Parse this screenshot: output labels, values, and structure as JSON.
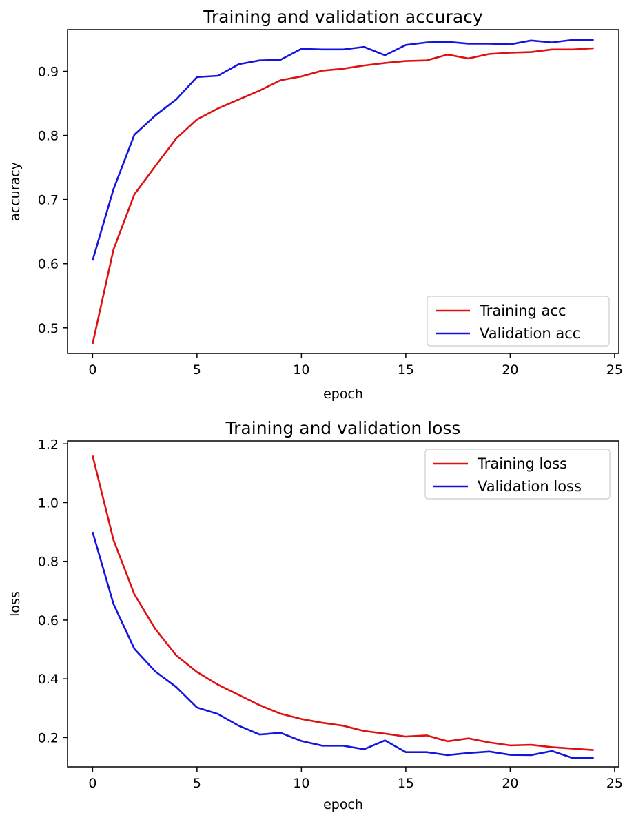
{
  "chart_data": [
    {
      "type": "line",
      "title": "Training and validation accuracy",
      "xlabel": "epoch",
      "ylabel": "accuracy",
      "xlim": [
        -1.2,
        25.2
      ],
      "ylim": [
        0.46,
        0.965
      ],
      "xticks": [
        0,
        5,
        10,
        15,
        20,
        25
      ],
      "xtick_labels": [
        "0",
        "5",
        "10",
        "15",
        "20",
        "25"
      ],
      "yticks": [
        0.5,
        0.6,
        0.7,
        0.8,
        0.9
      ],
      "ytick_labels": [
        "0.5",
        "0.6",
        "0.7",
        "0.8",
        "0.9"
      ],
      "legend_position": "bottom-right",
      "x": [
        0,
        1,
        2,
        3,
        4,
        5,
        6,
        7,
        8,
        9,
        10,
        11,
        12,
        13,
        14,
        15,
        16,
        17,
        18,
        19,
        20,
        21,
        22,
        23,
        24
      ],
      "series": [
        {
          "name": "Training acc",
          "color": "#e01010",
          "values": [
            0.475,
            0.622,
            0.708,
            0.752,
            0.795,
            0.825,
            0.842,
            0.856,
            0.87,
            0.886,
            0.892,
            0.901,
            0.904,
            0.909,
            0.913,
            0.916,
            0.917,
            0.926,
            0.92,
            0.927,
            0.929,
            0.93,
            0.934,
            0.934,
            0.936
          ]
        },
        {
          "name": "Validation acc",
          "color": "#1414e0",
          "values": [
            0.605,
            0.716,
            0.801,
            0.831,
            0.856,
            0.891,
            0.893,
            0.911,
            0.917,
            0.918,
            0.935,
            0.934,
            0.934,
            0.938,
            0.925,
            0.941,
            0.945,
            0.946,
            0.943,
            0.943,
            0.942,
            0.948,
            0.945,
            0.949,
            0.949
          ]
        }
      ]
    },
    {
      "type": "line",
      "title": "Training and validation loss",
      "xlabel": "epoch",
      "ylabel": "loss",
      "xlim": [
        -1.2,
        25.2
      ],
      "ylim": [
        0.1,
        1.21
      ],
      "xticks": [
        0,
        5,
        10,
        15,
        20,
        25
      ],
      "xtick_labels": [
        "0",
        "5",
        "10",
        "15",
        "20",
        "25"
      ],
      "yticks": [
        0.2,
        0.4,
        0.6,
        0.8,
        1.0,
        1.2
      ],
      "ytick_labels": [
        "0.2",
        "0.4",
        "0.6",
        "0.8",
        "1.0",
        "1.2"
      ],
      "legend_position": "top-right",
      "x": [
        0,
        1,
        2,
        3,
        4,
        5,
        6,
        7,
        8,
        9,
        10,
        11,
        12,
        13,
        14,
        15,
        16,
        17,
        18,
        19,
        20,
        21,
        22,
        23,
        24
      ],
      "series": [
        {
          "name": "Training loss",
          "color": "#e01010",
          "values": [
            1.16,
            0.873,
            0.688,
            0.57,
            0.48,
            0.423,
            0.38,
            0.345,
            0.31,
            0.281,
            0.263,
            0.25,
            0.24,
            0.222,
            0.213,
            0.203,
            0.207,
            0.187,
            0.197,
            0.183,
            0.173,
            0.175,
            0.167,
            0.162,
            0.157
          ]
        },
        {
          "name": "Validation loss",
          "color": "#1414e0",
          "values": [
            0.9,
            0.655,
            0.502,
            0.425,
            0.372,
            0.302,
            0.28,
            0.24,
            0.21,
            0.216,
            0.188,
            0.172,
            0.172,
            0.16,
            0.19,
            0.15,
            0.15,
            0.14,
            0.147,
            0.152,
            0.141,
            0.14,
            0.154,
            0.13,
            0.13
          ]
        }
      ]
    }
  ]
}
